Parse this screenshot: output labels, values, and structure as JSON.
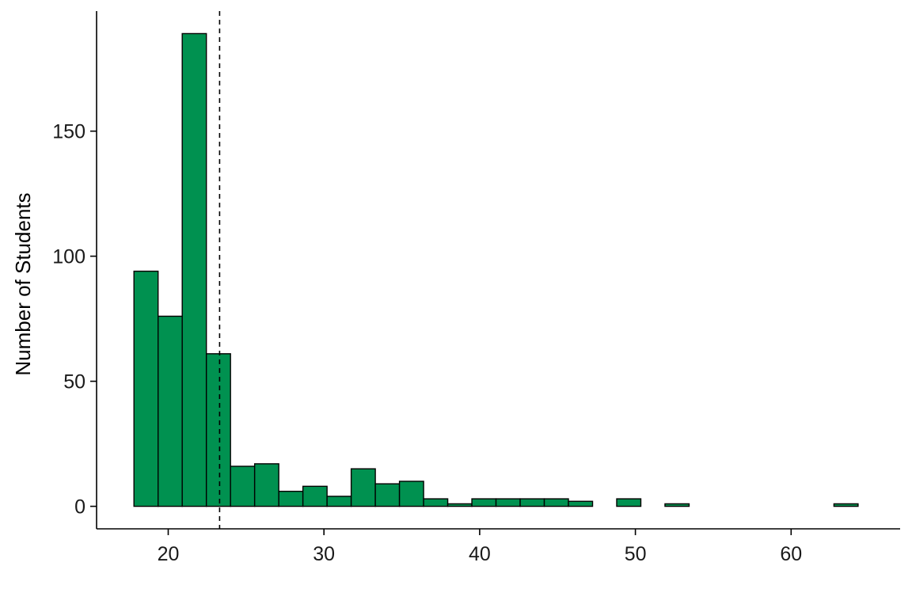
{
  "chart_data": {
    "type": "bar",
    "subtype": "histogram",
    "title": "",
    "xlabel": "",
    "ylabel": "Number of Students",
    "bin_width": 1.55,
    "bin_start": 17.8,
    "values": [
      94,
      76,
      189,
      61,
      16,
      17,
      6,
      8,
      4,
      15,
      9,
      10,
      3,
      1,
      3,
      3,
      3,
      3,
      2,
      0,
      3,
      0,
      1,
      0,
      0,
      0,
      0,
      0,
      0,
      1
    ],
    "xlim": [
      15.4,
      67.0
    ],
    "ylim": [
      -9,
      198
    ],
    "x_ticks": [
      20,
      30,
      40,
      50,
      60
    ],
    "y_ticks": [
      0,
      50,
      100,
      150
    ],
    "reference_line": {
      "x": 23.3,
      "style": "dashed"
    },
    "bar_color": "#009150",
    "outline_color": "#000000",
    "grid": false,
    "legend": "none"
  }
}
